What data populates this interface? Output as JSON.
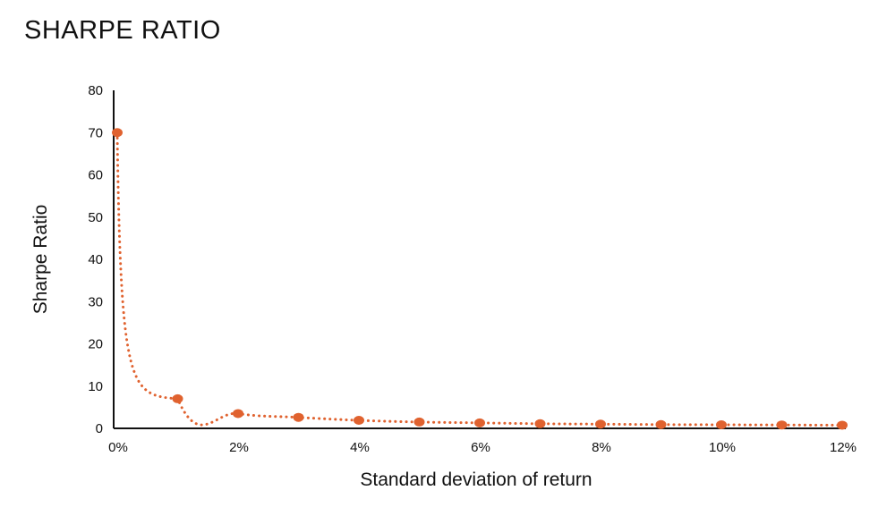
{
  "chart_data": {
    "type": "line",
    "title": "SHARPE RATIO",
    "xlabel": "Standard deviation of return",
    "ylabel": "Sharpe Ratio",
    "x": [
      0,
      1,
      2,
      3,
      4,
      5,
      6,
      7,
      8,
      9,
      10,
      11,
      12
    ],
    "series": [
      {
        "values": [
          70,
          7,
          3.5,
          2.6,
          1.9,
          1.5,
          1.3,
          1.1,
          1.0,
          0.9,
          0.85,
          0.8,
          0.75
        ]
      }
    ],
    "xlim": [
      0,
      12
    ],
    "ylim": [
      0,
      80
    ],
    "x_ticks": [
      "0%",
      "2%",
      "4%",
      "6%",
      "8%",
      "10%",
      "12%"
    ],
    "y_ticks": [
      "0",
      "10",
      "20",
      "30",
      "40",
      "50",
      "60",
      "70",
      "80"
    ],
    "grid": false,
    "line_style": "dotted",
    "color": "#E0622F",
    "axis_color": "#111111"
  }
}
